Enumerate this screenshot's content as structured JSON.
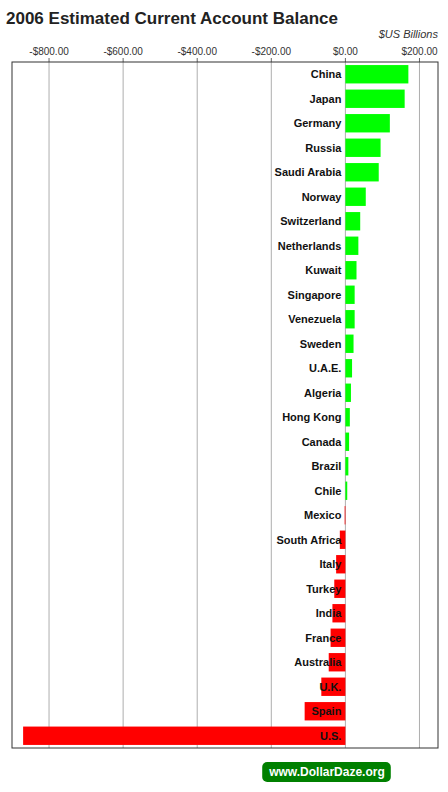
{
  "chart_data": {
    "type": "bar",
    "orientation": "horizontal",
    "title": "2006 Estimated Current Account Balance",
    "subtitle": "$US Billions",
    "annotations": [
      "www.DollarDaze.org"
    ],
    "categories": [
      "China",
      "Japan",
      "Germany",
      "Russia",
      "Saudi Arabia",
      "Norway",
      "Switzerland",
      "Netherlands",
      "Kuwait",
      "Singapore",
      "Venezuela",
      "Sweden",
      "U.A.E.",
      "Algeria",
      "Hong Kong",
      "Canada",
      "Brazil",
      "Chile",
      "Mexico",
      "South Africa",
      "Italy",
      "Turkey",
      "India",
      "France",
      "Australia",
      "U.K.",
      "Spain",
      "U.S."
    ],
    "values": [
      170,
      160,
      120,
      95,
      90,
      55,
      40,
      35,
      30,
      25,
      25,
      22,
      18,
      15,
      12,
      10,
      8,
      5,
      -2,
      -15,
      -25,
      -30,
      -35,
      -40,
      -45,
      -65,
      -110,
      -870
    ],
    "colors": [
      "#00FF00",
      "#00FF00",
      "#00FF00",
      "#00FF00",
      "#00FF00",
      "#00FF00",
      "#00FF00",
      "#00FF00",
      "#00FF00",
      "#00FF00",
      "#00FF00",
      "#00FF00",
      "#00FF00",
      "#00FF00",
      "#00FF00",
      "#00FF00",
      "#00FF00",
      "#00FF00",
      "#FF0000",
      "#FF0000",
      "#FF0000",
      "#FF0000",
      "#FF0000",
      "#FF0000",
      "#FF0000",
      "#FF0000",
      "#FF0000",
      "#FF0000"
    ],
    "xlim": [
      -900,
      250
    ],
    "xticks": [
      {
        "value": -800,
        "label": "-$800.00"
      },
      {
        "value": -600,
        "label": "-$600.00"
      },
      {
        "value": -400,
        "label": "-$400.00"
      },
      {
        "value": -200,
        "label": "-$200.00"
      },
      {
        "value": 0,
        "label": "$0.00"
      },
      {
        "value": 200,
        "label": "$200.00"
      }
    ],
    "grid": true
  }
}
